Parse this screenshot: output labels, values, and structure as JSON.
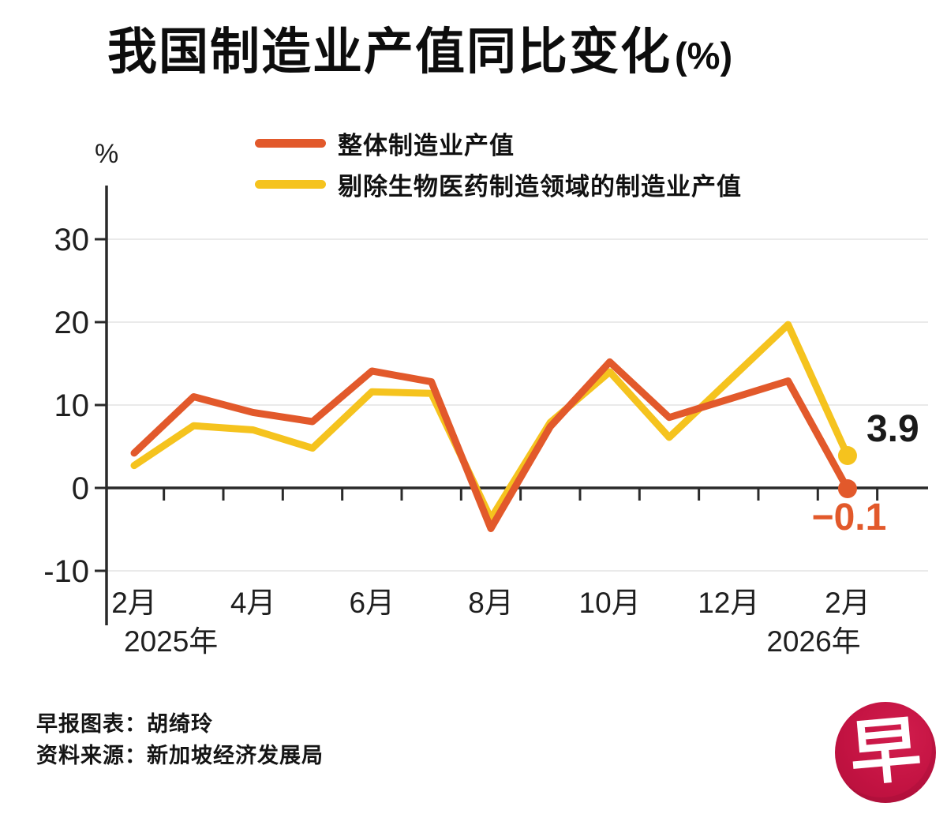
{
  "title": {
    "main": "我国制造业产值同比变化",
    "suffix": "(%)"
  },
  "legend": [
    {
      "id": "overall",
      "label": "整体制造业产值",
      "color": "#E2592B"
    },
    {
      "id": "ex-biomedical",
      "label": "剔除生物医药制造领域的制造业产值",
      "color": "#F5C31E"
    }
  ],
  "chart_data": {
    "type": "line",
    "title": "我国制造业产值同比变化(%)",
    "unit_label": "%",
    "xlabel": "",
    "ylabel": "%",
    "ylim": [
      -13,
      35
    ],
    "yticks": [
      30,
      20,
      10,
      0,
      -10
    ],
    "grid": "horizontal",
    "legend_position": "top",
    "categories": [
      "2025-02",
      "2025-03",
      "2025-04",
      "2025-05",
      "2025-06",
      "2025-07",
      "2025-08",
      "2025-09",
      "2025-10",
      "2025-11",
      "2025-12",
      "2026-01",
      "2026-02"
    ],
    "x_tick_labels": [
      {
        "text": "2月",
        "index": 0
      },
      {
        "text": "4月",
        "index": 2
      },
      {
        "text": "6月",
        "index": 4
      },
      {
        "text": "8月",
        "index": 6
      },
      {
        "text": "10月",
        "index": 8
      },
      {
        "text": "12月",
        "index": 10
      },
      {
        "text": "2月",
        "index": 12
      }
    ],
    "year_labels": [
      {
        "text": "2025年"
      },
      {
        "text": "2026年"
      }
    ],
    "series": [
      {
        "id": "overall",
        "name": "整体制造业产值",
        "color": "#E2592B",
        "values": [
          4.2,
          11.0,
          9.1,
          8.0,
          14.1,
          12.8,
          -4.9,
          7.4,
          15.2,
          8.5,
          10.7,
          12.9,
          -0.1
        ],
        "end_label": "−0.1",
        "end_label_color": "#E2592B"
      },
      {
        "id": "ex-biomedical",
        "name": "剔除生物医药制造领域的制造业产值",
        "color": "#F5C31E",
        "values": [
          2.7,
          7.5,
          7.0,
          4.8,
          11.6,
          11.4,
          -3.7,
          7.9,
          14.0,
          6.1,
          12.9,
          19.7,
          3.9
        ],
        "end_label": "3.9",
        "end_label_color": "#1a1a1a"
      }
    ]
  },
  "footer": {
    "credit": "早报图表：胡绮玲",
    "source": "资料来源：新加坡经济发展局"
  },
  "logo": {
    "char": "早"
  }
}
